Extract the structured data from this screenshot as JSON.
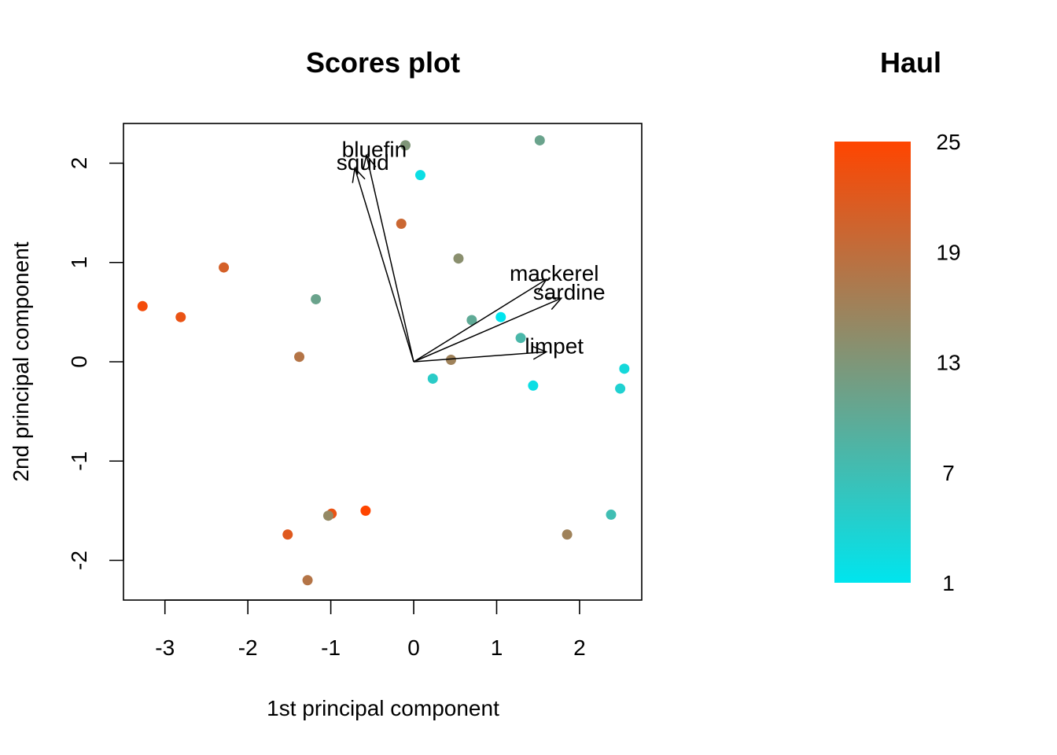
{
  "chart_data": {
    "type": "scatter",
    "title": "Scores plot",
    "xlabel": "1st principal component",
    "ylabel": "2nd principal component",
    "xlim": [
      -3.5,
      2.75
    ],
    "ylim": [
      -2.4,
      2.4
    ],
    "xticks": [
      -3,
      -2,
      -1,
      0,
      1,
      2
    ],
    "yticks": [
      -2,
      -1,
      0,
      1,
      2
    ],
    "points": [
      {
        "x": -3.27,
        "y": 0.56,
        "haul": 24
      },
      {
        "x": -2.81,
        "y": 0.45,
        "haul": 23
      },
      {
        "x": -2.29,
        "y": 0.95,
        "haul": 21
      },
      {
        "x": -1.18,
        "y": 0.63,
        "haul": 11
      },
      {
        "x": -1.38,
        "y": 0.05,
        "haul": 18
      },
      {
        "x": -0.1,
        "y": 2.18,
        "haul": 13
      },
      {
        "x": 0.08,
        "y": 1.88,
        "haul": 2
      },
      {
        "x": -0.15,
        "y": 1.39,
        "haul": 20
      },
      {
        "x": 0.54,
        "y": 1.04,
        "haul": 14
      },
      {
        "x": 1.52,
        "y": 2.23,
        "haul": 11
      },
      {
        "x": 0.7,
        "y": 0.42,
        "haul": 10
      },
      {
        "x": 1.05,
        "y": 0.45,
        "haul": 1
      },
      {
        "x": 1.29,
        "y": 0.24,
        "haul": 8
      },
      {
        "x": 0.45,
        "y": 0.02,
        "haul": 16
      },
      {
        "x": 0.23,
        "y": -0.17,
        "haul": 5
      },
      {
        "x": 1.44,
        "y": -0.24,
        "haul": 2
      },
      {
        "x": 2.54,
        "y": -0.07,
        "haul": 3
      },
      {
        "x": 2.49,
        "y": -0.27,
        "haul": 4
      },
      {
        "x": -0.58,
        "y": -1.5,
        "haul": 25
      },
      {
        "x": -0.99,
        "y": -1.53,
        "haul": 23
      },
      {
        "x": -1.03,
        "y": -1.55,
        "haul": 15
      },
      {
        "x": -1.52,
        "y": -1.74,
        "haul": 22
      },
      {
        "x": -1.28,
        "y": -2.2,
        "haul": 18
      },
      {
        "x": 2.38,
        "y": -1.54,
        "haul": 7
      },
      {
        "x": 1.85,
        "y": -1.74,
        "haul": 16
      }
    ],
    "loadings": [
      {
        "name": "bluefin",
        "x": -0.57,
        "y": 2.08
      },
      {
        "name": "squid",
        "x": -0.71,
        "y": 1.95
      },
      {
        "name": "mackerel",
        "x": 1.6,
        "y": 0.83
      },
      {
        "name": "sardine",
        "x": 1.78,
        "y": 0.64
      },
      {
        "name": "limpet",
        "x": 1.6,
        "y": 0.1
      }
    ],
    "colorbar": {
      "title": "Haul",
      "min": 1,
      "max": 25,
      "ticks": [
        "25",
        "19",
        "13",
        "7",
        "1"
      ],
      "color_low": "#00e5ee",
      "color_mid": "#7f9678",
      "color_high": "#ff4500"
    }
  }
}
